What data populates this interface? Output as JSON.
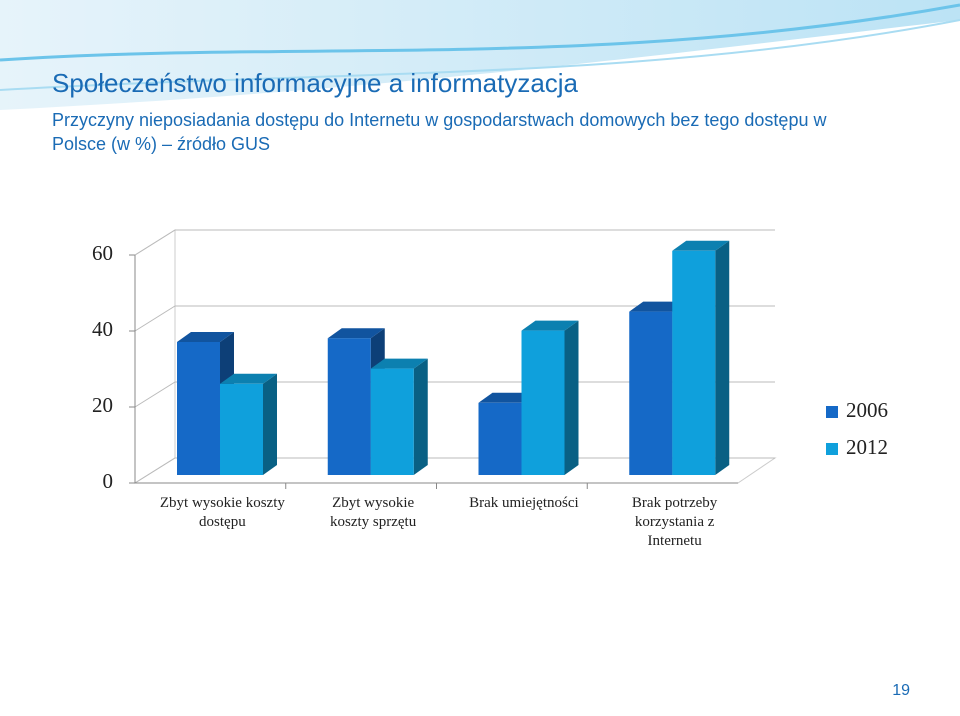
{
  "title": "Społeczeństwo informacyjne a informatyzacja",
  "page_number": "19",
  "chart_data": {
    "type": "bar3d",
    "subtitle": "Przyczyny nieposiadania dostępu do Internetu w gospodarstwach domowych bez tego dostępu w Polsce (w %) – źródło GUS",
    "categories": [
      "Zbyt wysokie koszty dostępu",
      "Zbyt wysokie koszty sprzętu",
      "Brak umiejętności",
      "Brak potrzeby korzystania z Internetu"
    ],
    "series": [
      {
        "name": "2006",
        "color": "#1569c7",
        "values": [
          35,
          36,
          19,
          43
        ]
      },
      {
        "name": "2012",
        "color": "#0fa0dc",
        "values": [
          24,
          28,
          38,
          59
        ]
      }
    ],
    "ylim": [
      0,
      60
    ],
    "yticks": [
      0,
      20,
      40,
      60
    ],
    "grid": true,
    "legend": "right"
  }
}
